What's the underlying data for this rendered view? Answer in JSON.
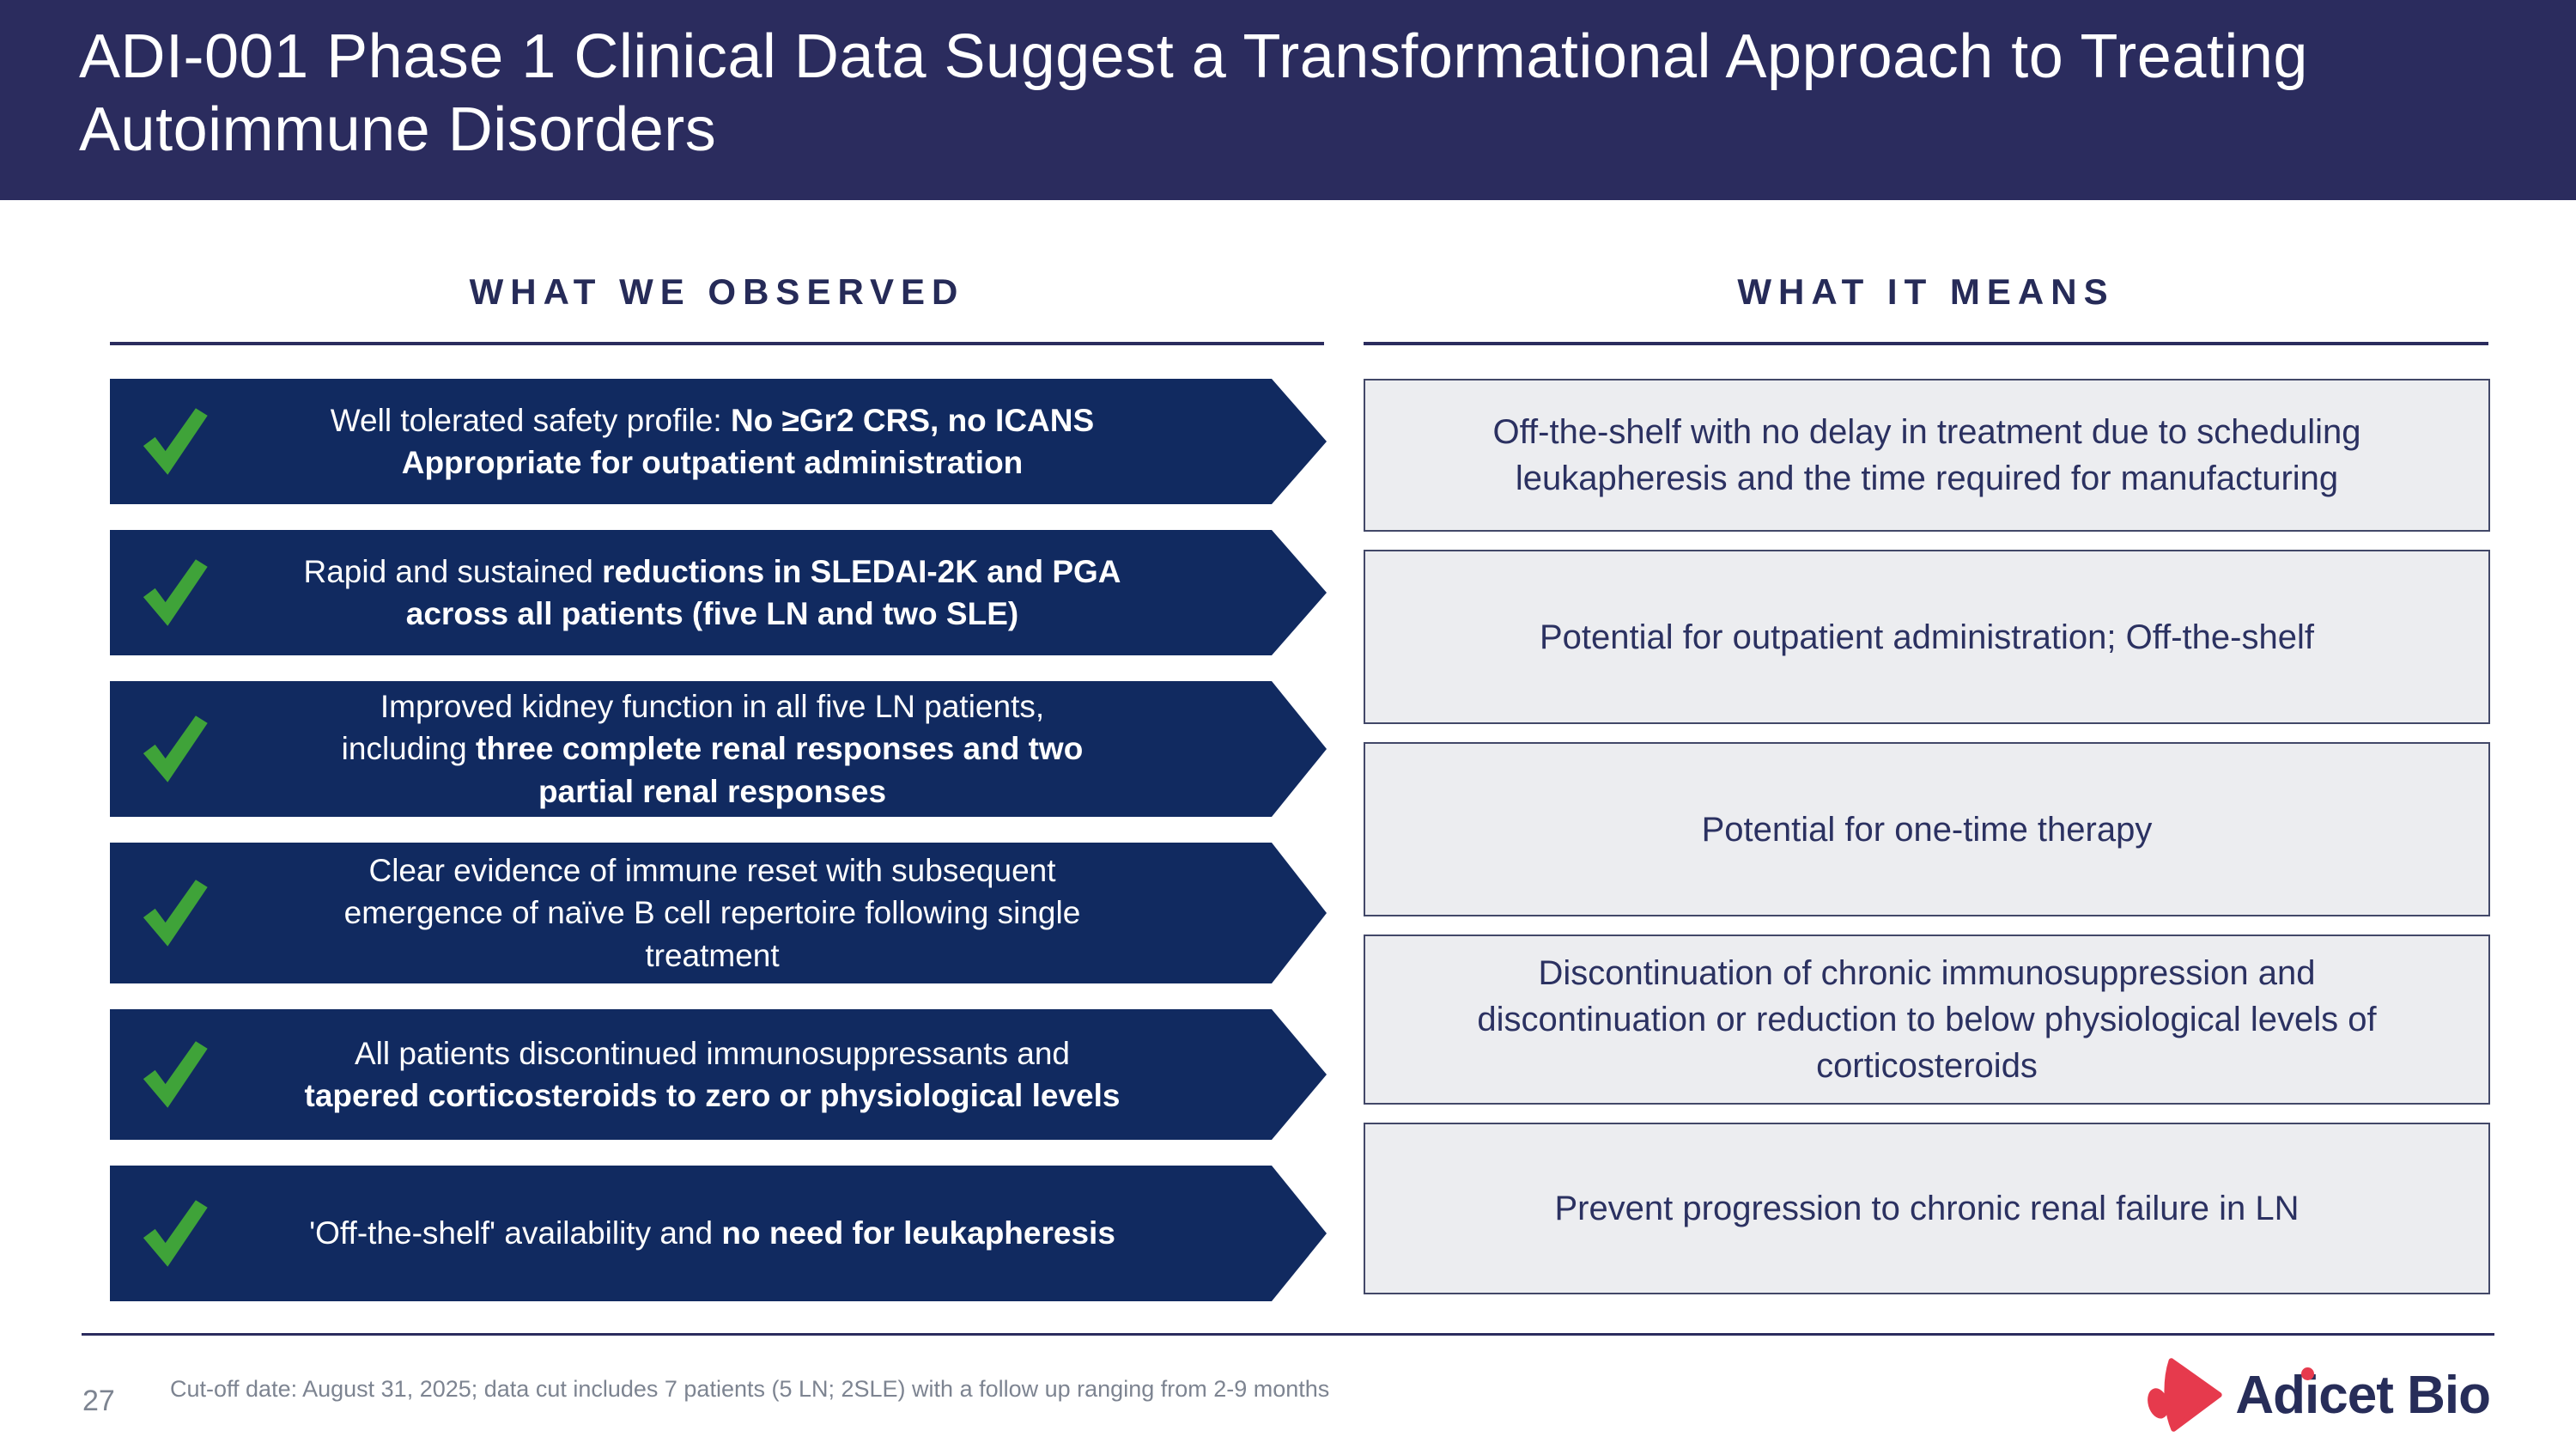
{
  "slide": {
    "title": "ADI-001 Phase 1 Clinical Data Suggest a Transformational Approach to Treating Autoimmune Disorders",
    "page_number": "27",
    "footnote": "Cut-off date: August 31, 2025; data cut includes 7 patients (5 LN; 2SLE) with a follow up ranging from 2-9 months"
  },
  "columns": {
    "observed": {
      "heading": "WHAT WE OBSERVED",
      "items": [
        {
          "segments": [
            {
              "t": "Well tolerated safety profile: "
            },
            {
              "t": "No ≥Gr2 CRS, no ICANS",
              "b": true
            },
            {
              "t": "Appropriate for outpatient administration",
              "b": true,
              "br": true
            }
          ]
        },
        {
          "segments": [
            {
              "t": "Rapid and sustained "
            },
            {
              "t": "reductions in SLEDAI-2K and PGA",
              "b": true
            },
            {
              "t": "across all patients (five LN and two SLE)",
              "b": true,
              "br": true
            }
          ]
        },
        {
          "segments": [
            {
              "t": "Improved kidney function in all five LN patients,"
            },
            {
              "t": "including ",
              "br": true
            },
            {
              "t": "three complete renal responses and two",
              "b": true
            },
            {
              "t": "partial renal responses",
              "b": true,
              "br": true
            }
          ]
        },
        {
          "segments": [
            {
              "t": "Clear evidence of immune reset with subsequent"
            },
            {
              "t": "emergence of naïve B cell repertoire following single",
              "br": true
            },
            {
              "t": "treatment",
              "br": true
            }
          ]
        },
        {
          "segments": [
            {
              "t": "All patients discontinued immunosuppressants and"
            },
            {
              "t": "tapered corticosteroids to zero or physiological levels",
              "b": true,
              "br": true
            }
          ]
        },
        {
          "segments": [
            {
              "t": "'Off-the-shelf' availability and "
            },
            {
              "t": "no need for leukapheresis",
              "b": true
            }
          ]
        }
      ]
    },
    "means": {
      "heading": "WHAT IT MEANS",
      "items": [
        "Off-the-shelf with no delay in treatment due to scheduling leukapheresis and the time required for manufacturing",
        "Potential for outpatient administration; Off-the-shelf",
        "Potential for one-time therapy",
        "Discontinuation of chronic immunosuppression and discontinuation or reduction to below physiological levels of corticosteroids",
        "Prevent progression to chronic renal failure in LN"
      ]
    }
  },
  "logo": {
    "brand": "Adicet Bio"
  },
  "colors": {
    "header_bg": "#2b2c5e",
    "arrow_bg": "#112a60",
    "check_green": "#3fa339",
    "box_bg": "#ecedf0",
    "box_border": "#424868",
    "navy_text": "#2b3161",
    "heading_navy": "#262b58",
    "rule_navy": "#2b2c5e",
    "footer_gray": "#7d8491",
    "accent_red": "#e63a4d"
  }
}
